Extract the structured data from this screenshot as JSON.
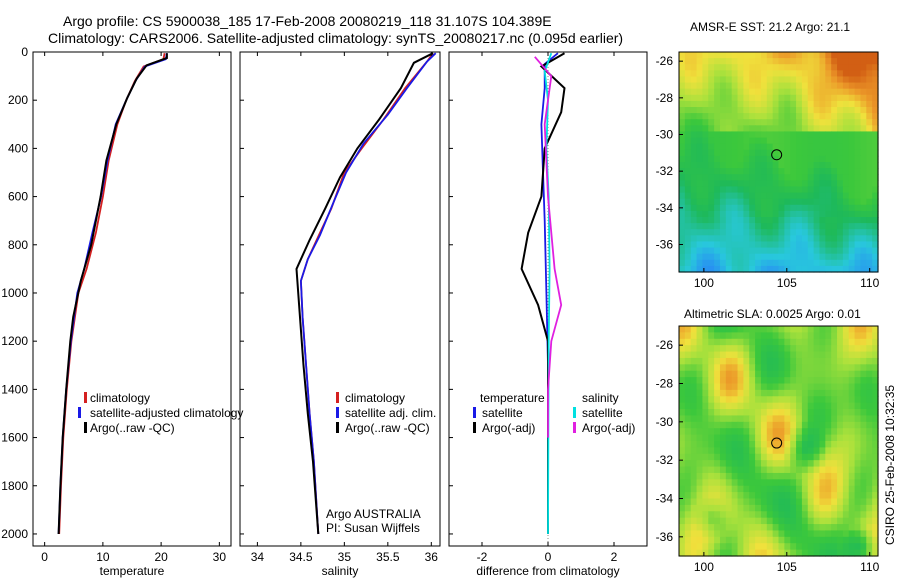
{
  "title": {
    "line1": "Argo profile: CS 5900038_185 17-Feb-2008 20080219_118 31.107S 104.389E",
    "line2": "Climatology: CARS2006. Satellite-adjusted climatology: synTS_20080217.nc (0.095d earlier)"
  },
  "colors": {
    "climatology": "#d42020",
    "satellite": "#1a1ae6",
    "argo": "#000000",
    "salinity_sat": "#00e0e0",
    "salinity_argo": "#e020e0"
  },
  "chart_data": [
    {
      "type": "line",
      "id": "temperature",
      "xlabel": "temperature",
      "ylabel": "",
      "xlim": [
        -2,
        32
      ],
      "ylim": [
        2050,
        0
      ],
      "xticks": [
        "0",
        "10",
        "20",
        "30"
      ],
      "xtick_values": [
        0,
        10,
        20,
        30
      ],
      "yticks": [
        "0",
        "200",
        "400",
        "600",
        "800",
        "1000",
        "1200",
        "1400",
        "1600",
        "1800",
        "2000"
      ],
      "ytick_values": [
        0,
        200,
        400,
        600,
        800,
        1000,
        1200,
        1400,
        1600,
        1800,
        2000
      ],
      "legend": [
        "climatology",
        "satellite-adjusted climatology",
        "Argo(..raw -QC)"
      ],
      "series": [
        {
          "name": "climatology",
          "color": "#d42020",
          "points": [
            [
              20.6,
              5
            ],
            [
              20.4,
              30
            ],
            [
              17,
              60
            ],
            [
              15.5,
              120
            ],
            [
              14,
              200
            ],
            [
              12.5,
              300
            ],
            [
              11,
              450
            ],
            [
              10,
              600
            ],
            [
              8.8,
              750
            ],
            [
              7.2,
              900
            ],
            [
              5.8,
              1000
            ],
            [
              4.6,
              1200
            ],
            [
              3.8,
              1400
            ],
            [
              3.2,
              1600
            ],
            [
              2.8,
              1800
            ],
            [
              2.5,
              2000
            ]
          ]
        },
        {
          "name": "satellite-adjusted climatology",
          "color": "#1a1ae6",
          "points": [
            [
              21,
              5
            ],
            [
              20.8,
              30
            ],
            [
              17.2,
              60
            ],
            [
              15.6,
              120
            ],
            [
              14,
              200
            ],
            [
              12.2,
              300
            ],
            [
              10.8,
              450
            ],
            [
              9.7,
              600
            ],
            [
              8.2,
              750
            ],
            [
              6.8,
              900
            ],
            [
              5.6,
              1000
            ],
            [
              4.5,
              1200
            ],
            [
              3.7,
              1400
            ],
            [
              3.1,
              1600
            ],
            [
              2.7,
              1800
            ],
            [
              2.4,
              2000
            ]
          ]
        },
        {
          "name": "Argo(..raw -QC)",
          "color": "#000000",
          "points": [
            [
              21,
              5
            ],
            [
              21,
              25
            ],
            [
              17.5,
              55
            ],
            [
              15.8,
              110
            ],
            [
              14.2,
              190
            ],
            [
              12.3,
              300
            ],
            [
              10.6,
              450
            ],
            [
              9.6,
              600
            ],
            [
              8,
              800
            ],
            [
              6.2,
              950
            ],
            [
              4.9,
              1100
            ],
            [
              4.4,
              1200
            ],
            [
              3.7,
              1400
            ],
            [
              3.1,
              1600
            ],
            [
              2.7,
              1800
            ],
            [
              2.4,
              2000
            ]
          ]
        }
      ]
    },
    {
      "type": "line",
      "id": "salinity",
      "xlabel": "salinity",
      "xlim": [
        33.8,
        36.1
      ],
      "ylim": [
        2050,
        0
      ],
      "xticks": [
        "34",
        "34.5",
        "35",
        "35.5",
        "36"
      ],
      "xtick_values": [
        34,
        34.5,
        35,
        35.5,
        36
      ],
      "legend": [
        "climatology",
        "satellite adj. clim.",
        "Argo(..raw -QC)"
      ],
      "annotation": [
        "Argo AUSTRALIA",
        "PI: Susan Wijffels"
      ],
      "series": [
        {
          "name": "climatology",
          "color": "#d42020",
          "points": [
            [
              36.02,
              5
            ],
            [
              35.95,
              40
            ],
            [
              35.7,
              150
            ],
            [
              35.45,
              280
            ],
            [
              35.2,
              400
            ],
            [
              35,
              500
            ],
            [
              34.85,
              650
            ],
            [
              34.72,
              750
            ],
            [
              34.58,
              860
            ],
            [
              34.5,
              950
            ],
            [
              34.52,
              1100
            ],
            [
              34.56,
              1300
            ],
            [
              34.6,
              1500
            ],
            [
              34.65,
              1700
            ],
            [
              34.7,
              2000
            ]
          ]
        },
        {
          "name": "satellite adj. clim.",
          "color": "#1a1ae6",
          "points": [
            [
              36.05,
              5
            ],
            [
              35.95,
              40
            ],
            [
              35.72,
              150
            ],
            [
              35.5,
              260
            ],
            [
              35.22,
              380
            ],
            [
              35.02,
              500
            ],
            [
              34.88,
              620
            ],
            [
              34.72,
              760
            ],
            [
              34.58,
              860
            ],
            [
              34.5,
              950
            ],
            [
              34.52,
              1100
            ],
            [
              34.56,
              1300
            ],
            [
              34.6,
              1500
            ],
            [
              34.65,
              1700
            ],
            [
              34.7,
              2000
            ]
          ]
        },
        {
          "name": "Argo(..raw -QC)",
          "color": "#000000",
          "points": [
            [
              36.02,
              5
            ],
            [
              35.8,
              45
            ],
            [
              35.65,
              150
            ],
            [
              35.4,
              280
            ],
            [
              35.15,
              400
            ],
            [
              34.95,
              520
            ],
            [
              34.78,
              650
            ],
            [
              34.6,
              780
            ],
            [
              34.45,
              900
            ],
            [
              34.48,
              1050
            ],
            [
              34.53,
              1300
            ],
            [
              34.58,
              1500
            ],
            [
              34.64,
              1700
            ],
            [
              34.7,
              2000
            ]
          ]
        }
      ]
    },
    {
      "type": "line",
      "id": "difference",
      "xlabel": "difference from climatology",
      "xlim": [
        -3,
        3
      ],
      "ylim": [
        2050,
        0
      ],
      "xticks": [
        "-2",
        "0",
        "2"
      ],
      "xtick_values": [
        -2,
        0,
        2
      ],
      "legend_temperature": {
        "header": "temperature",
        "items": [
          "satellite",
          "Argo(-adj)"
        ]
      },
      "legend_salinity": {
        "header": "salinity",
        "items": [
          "satellite",
          "Argo(-adj)"
        ]
      },
      "series": [
        {
          "name": "temperature satellite",
          "color": "#1a1ae6",
          "points": [
            [
              0.3,
              5
            ],
            [
              -0.1,
              50
            ],
            [
              -0.1,
              150
            ],
            [
              -0.2,
              300
            ],
            [
              -0.15,
              500
            ],
            [
              -0.1,
              700
            ],
            [
              -0.05,
              1000
            ],
            [
              0,
              1300
            ],
            [
              0,
              2000
            ]
          ]
        },
        {
          "name": "temperature Argo(-adj)",
          "color": "#000000",
          "points": [
            [
              0.5,
              5
            ],
            [
              -0.2,
              60
            ],
            [
              0.5,
              150
            ],
            [
              0.4,
              250
            ],
            [
              -0.1,
              400
            ],
            [
              -0.2,
              600
            ],
            [
              -0.6,
              750
            ],
            [
              -0.8,
              900
            ],
            [
              -0.3,
              1050
            ],
            [
              0,
              1200
            ],
            [
              0,
              2000
            ]
          ]
        },
        {
          "name": "salinity satellite",
          "color": "#00e0e0",
          "points": [
            [
              0.1,
              5
            ],
            [
              -0.1,
              80
            ],
            [
              0,
              200
            ],
            [
              -0.05,
              400
            ],
            [
              0.02,
              600
            ],
            [
              0.05,
              900
            ],
            [
              0.02,
              1200
            ],
            [
              0,
              2000
            ]
          ]
        },
        {
          "name": "salinity Argo(-adj)",
          "color": "#e020e0",
          "points": [
            [
              -0.4,
              20
            ],
            [
              0.1,
              100
            ],
            [
              -0.1,
              300
            ],
            [
              0,
              600
            ],
            [
              0.2,
              900
            ],
            [
              0.4,
              1050
            ],
            [
              0.1,
              1200
            ],
            [
              0,
              1400
            ],
            [
              0,
              1600
            ]
          ]
        }
      ]
    },
    {
      "type": "heatmap",
      "id": "sst_map",
      "title": "AMSR-E SST: 21.2 Argo: 21.1",
      "xlim": [
        98.5,
        110.5
      ],
      "ylim": [
        -37.5,
        -25.5
      ],
      "xticks": [
        "100",
        "105",
        "110"
      ],
      "xtick_values": [
        100,
        105,
        110
      ],
      "yticks": [
        "-26",
        "-28",
        "-30",
        "-32",
        "-34",
        "-36"
      ],
      "ytick_values": [
        -26,
        -28,
        -30,
        -32,
        -34,
        -36
      ],
      "marker": [
        104.389,
        -31.107
      ]
    },
    {
      "type": "heatmap",
      "id": "sla_map",
      "title": "Altimetric SLA: 0.0025 Argo: 0.01",
      "xlim": [
        98.5,
        110.5
      ],
      "ylim": [
        -37,
        -25
      ],
      "xticks": [
        "100",
        "105",
        "110"
      ],
      "xtick_values": [
        100,
        105,
        110
      ],
      "yticks": [
        "-26",
        "-28",
        "-30",
        "-32",
        "-34",
        "-36"
      ],
      "ytick_values": [
        -26,
        -28,
        -30,
        -32,
        -34,
        -36
      ],
      "marker": [
        104.389,
        -31.107
      ]
    }
  ],
  "side_label": "CSIRO 25-Feb-2008 10:32:35"
}
